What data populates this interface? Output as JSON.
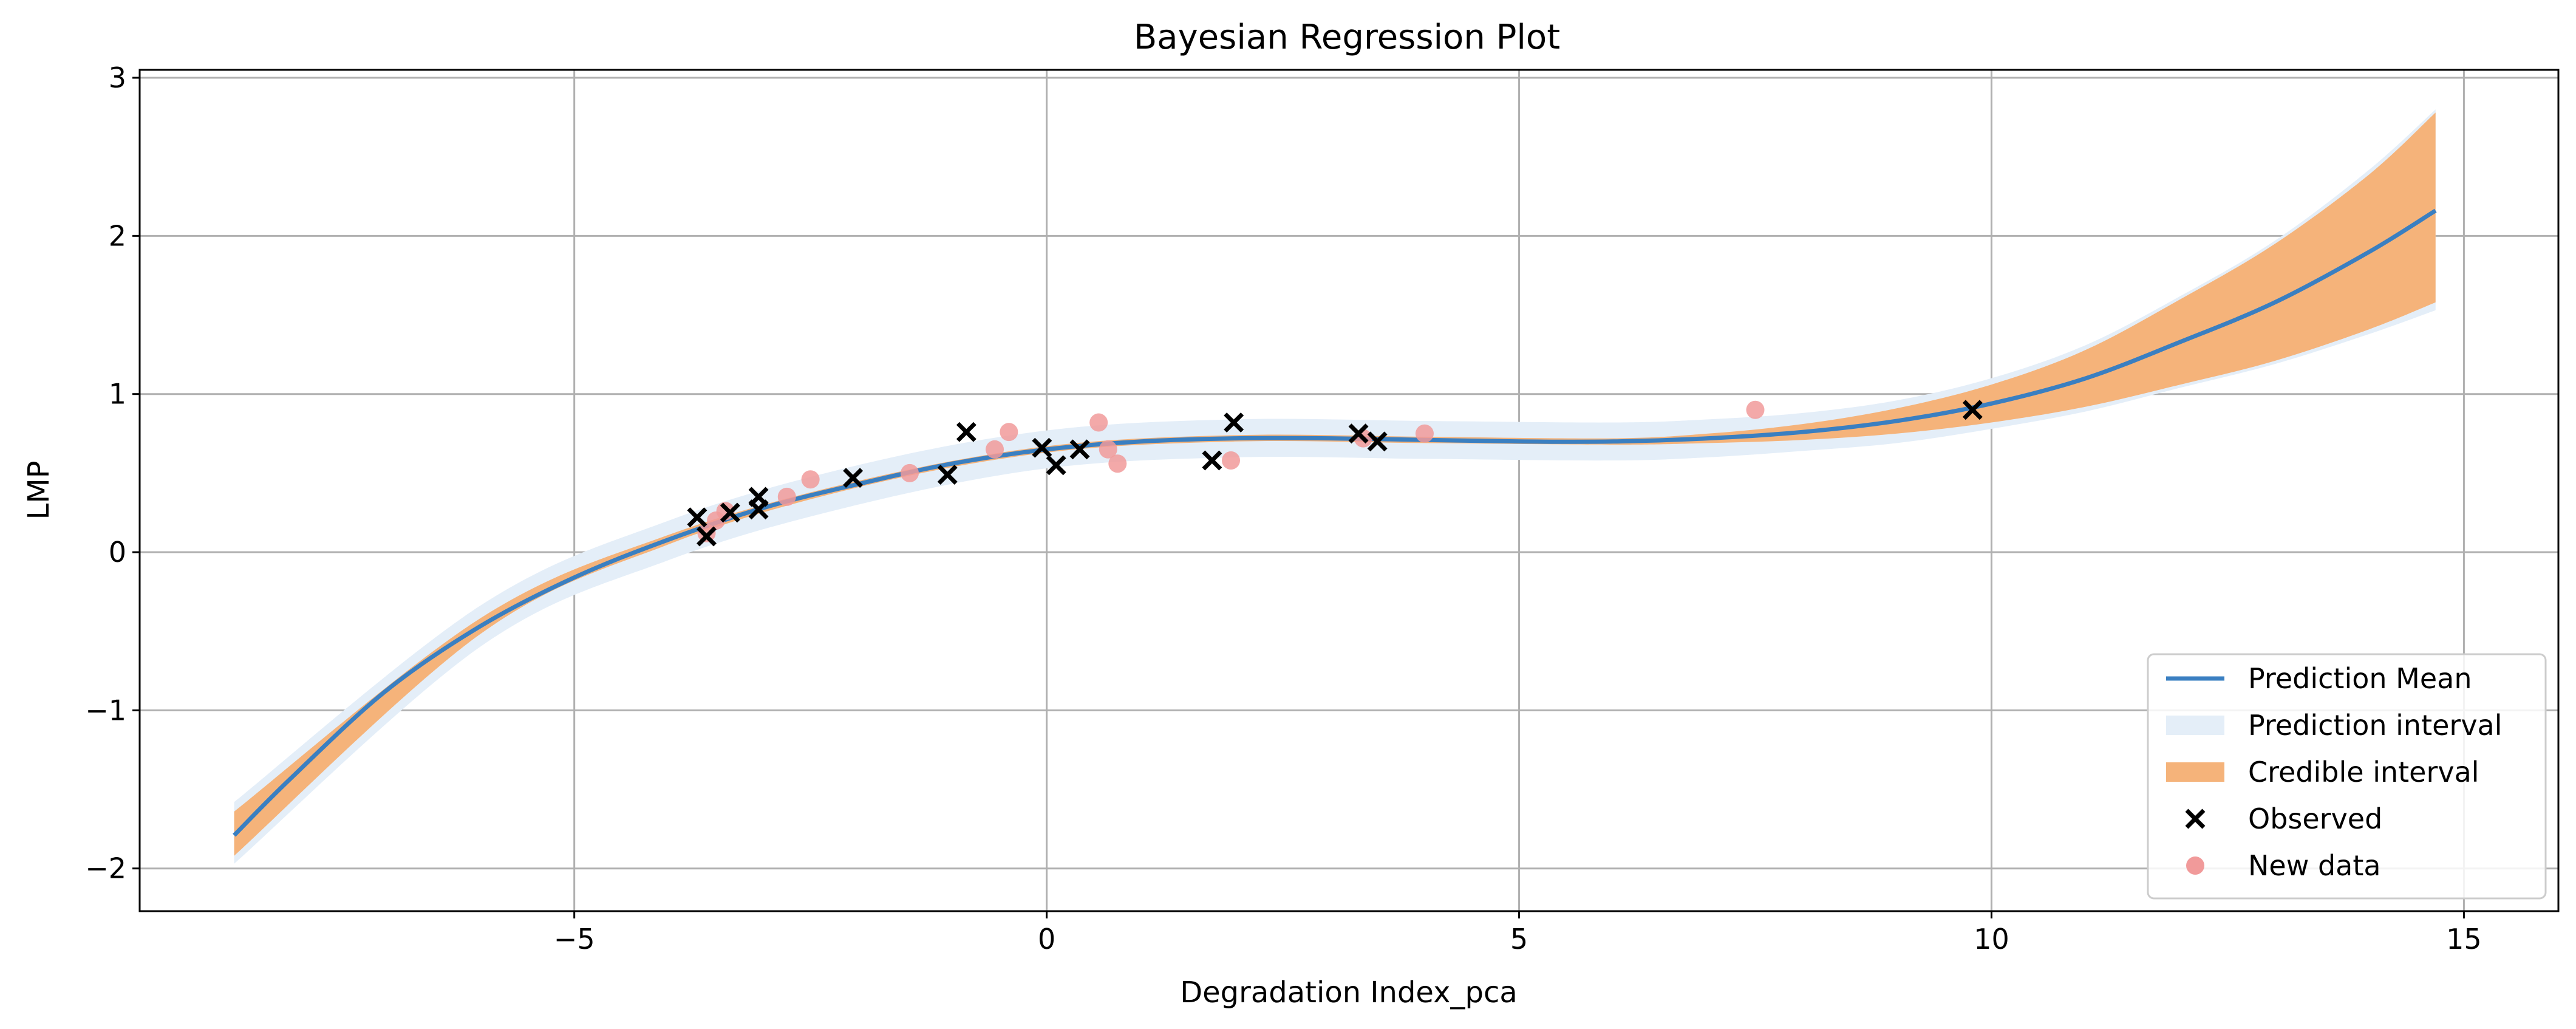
{
  "chart_data": {
    "type": "scatter",
    "title": "Bayesian Regression Plot",
    "xlabel": "Degradation Index_pca",
    "ylabel": "LMP",
    "xlim": [
      -9.6,
      16.0
    ],
    "ylim": [
      -2.27,
      3.05
    ],
    "xticks": [
      -5,
      0,
      5,
      10,
      15
    ],
    "xtick_labels": [
      "−5",
      "0",
      "5",
      "10",
      "15"
    ],
    "yticks": [
      -2,
      -1,
      0,
      1,
      2,
      3
    ],
    "ytick_labels": [
      "−2",
      "−1",
      "0",
      "1",
      "2",
      "3"
    ],
    "grid": true,
    "legend_position": "lower right",
    "legend": [
      "Prediction Mean",
      "Prediction interval",
      "Credible interval",
      "Observed",
      "New data"
    ],
    "colors": {
      "prediction_mean": "#3a7fc1",
      "prediction_interval": "#e4eef8",
      "credible_interval": "#f5b37a",
      "observed": "#000000",
      "new_data": "#f19a9a",
      "grid": "#b0b0b0"
    },
    "series": [
      {
        "name": "Prediction Mean",
        "kind": "line",
        "x": [
          -8.6,
          -8.0,
          -7.0,
          -6.0,
          -5.0,
          -4.0,
          -3.0,
          -2.0,
          -1.0,
          0.0,
          1.0,
          2.0,
          3.0,
          4.0,
          5.0,
          6.0,
          7.0,
          8.0,
          9.0,
          10.0,
          11.0,
          12.0,
          13.0,
          14.0,
          14.7
        ],
        "y": [
          -1.79,
          -1.43,
          -0.88,
          -0.47,
          -0.16,
          0.08,
          0.28,
          0.43,
          0.56,
          0.65,
          0.7,
          0.72,
          0.72,
          0.71,
          0.7,
          0.7,
          0.72,
          0.76,
          0.83,
          0.94,
          1.1,
          1.33,
          1.58,
          1.9,
          2.16
        ]
      },
      {
        "name": "Credible interval",
        "kind": "band",
        "x": [
          -8.6,
          -6.0,
          -4.0,
          -2.0,
          0.0,
          2.0,
          4.0,
          6.0,
          7.0,
          8.0,
          9.0,
          10.0,
          11.0,
          12.0,
          13.0,
          14.0,
          14.7
        ],
        "lower": [
          -1.92,
          -0.52,
          0.05,
          0.41,
          0.63,
          0.7,
          0.69,
          0.68,
          0.69,
          0.71,
          0.75,
          0.82,
          0.92,
          1.06,
          1.21,
          1.41,
          1.58
        ],
        "upper": [
          -1.64,
          -0.42,
          0.11,
          0.45,
          0.67,
          0.74,
          0.73,
          0.72,
          0.75,
          0.81,
          0.91,
          1.06,
          1.28,
          1.6,
          1.95,
          2.39,
          2.78
        ]
      },
      {
        "name": "Prediction interval",
        "kind": "band",
        "x": [
          -8.6,
          -6.0,
          -4.0,
          -2.0,
          0.0,
          2.0,
          4.0,
          6.0,
          7.0,
          8.0,
          9.0,
          10.0,
          11.0,
          12.0,
          13.0,
          14.0,
          14.7
        ],
        "lower": [
          -1.97,
          -0.6,
          -0.05,
          0.3,
          0.53,
          0.6,
          0.59,
          0.58,
          0.6,
          0.64,
          0.69,
          0.78,
          0.89,
          1.04,
          1.19,
          1.38,
          1.53
        ],
        "upper": [
          -1.58,
          -0.34,
          0.2,
          0.55,
          0.77,
          0.84,
          0.83,
          0.82,
          0.84,
          0.88,
          0.96,
          1.1,
          1.31,
          1.62,
          1.97,
          2.42,
          2.8
        ]
      },
      {
        "name": "Observed",
        "kind": "scatter",
        "marker": "x",
        "x": [
          -3.7,
          -3.6,
          -3.35,
          -3.05,
          -3.05,
          -2.05,
          -1.05,
          -0.85,
          -0.05,
          0.1,
          0.35,
          1.75,
          1.98,
          3.3,
          3.5,
          9.8
        ],
        "y": [
          0.22,
          0.1,
          0.25,
          0.27,
          0.35,
          0.47,
          0.49,
          0.76,
          0.66,
          0.55,
          0.65,
          0.58,
          0.82,
          0.75,
          0.7,
          0.9
        ]
      },
      {
        "name": "New data",
        "kind": "scatter",
        "marker": "o",
        "x": [
          -3.6,
          -3.5,
          -3.4,
          -2.75,
          -2.5,
          -1.45,
          -0.55,
          -0.4,
          0.55,
          0.65,
          0.75,
          1.95,
          3.35,
          4.0,
          7.5
        ],
        "y": [
          0.12,
          0.2,
          0.26,
          0.35,
          0.46,
          0.5,
          0.65,
          0.76,
          0.82,
          0.65,
          0.56,
          0.58,
          0.72,
          0.75,
          0.9
        ]
      }
    ]
  }
}
